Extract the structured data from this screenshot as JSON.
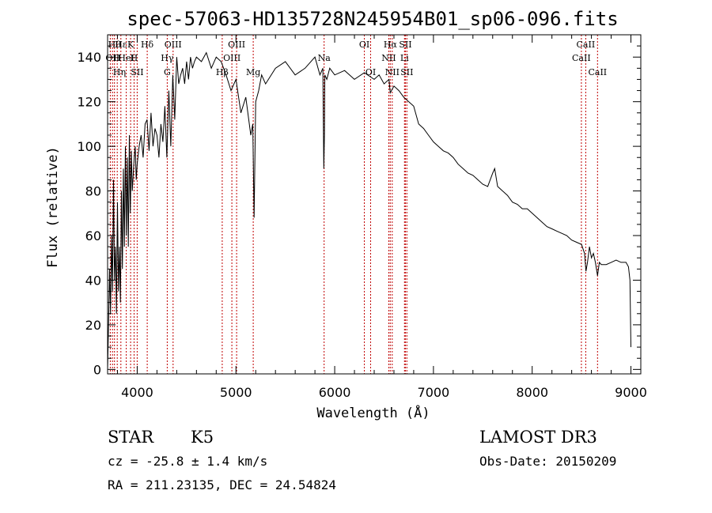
{
  "chart_data": {
    "type": "line",
    "title": "spec-57063-HD135728N245954B01_sp06-096.fits",
    "xlabel": "Wavelength (Å)",
    "ylabel": "Flux (relative)",
    "xlim": [
      3700,
      9100
    ],
    "ylim": [
      -2,
      150
    ],
    "x_ticks": [
      4000,
      5000,
      6000,
      7000,
      8000,
      9000
    ],
    "y_ticks": [
      0,
      20,
      40,
      60,
      80,
      100,
      120,
      140
    ],
    "series": [
      {
        "name": "flux",
        "x": [
          3700,
          3710,
          3720,
          3730,
          3740,
          3750,
          3760,
          3770,
          3780,
          3790,
          3800,
          3810,
          3820,
          3830,
          3840,
          3850,
          3860,
          3870,
          3880,
          3890,
          3900,
          3910,
          3920,
          3930,
          3940,
          3950,
          3960,
          3970,
          3980,
          3990,
          4000,
          4020,
          4040,
          4060,
          4080,
          4100,
          4120,
          4140,
          4160,
          4180,
          4200,
          4220,
          4240,
          4260,
          4280,
          4300,
          4320,
          4340,
          4360,
          4380,
          4400,
          4420,
          4440,
          4460,
          4480,
          4500,
          4520,
          4540,
          4560,
          4580,
          4600,
          4650,
          4700,
          4750,
          4800,
          4850,
          4900,
          4950,
          5000,
          5050,
          5100,
          5150,
          5170,
          5184,
          5200,
          5230,
          5260,
          5300,
          5400,
          5500,
          5600,
          5700,
          5800,
          5850,
          5880,
          5890,
          5896,
          5900,
          5920,
          5950,
          6000,
          6100,
          6200,
          6300,
          6400,
          6450,
          6500,
          6550,
          6563,
          6600,
          6650,
          6700,
          6750,
          6800,
          6850,
          6900,
          6950,
          7000,
          7050,
          7100,
          7150,
          7200,
          7250,
          7300,
          7350,
          7400,
          7450,
          7500,
          7550,
          7600,
          7620,
          7650,
          7700,
          7750,
          7800,
          7850,
          7900,
          7950,
          8000,
          8050,
          8100,
          8150,
          8200,
          8250,
          8300,
          8350,
          8400,
          8450,
          8500,
          8530,
          8545,
          8560,
          8580,
          8600,
          8620,
          8640,
          8662,
          8680,
          8700,
          8750,
          8800,
          8850,
          8900,
          8950,
          8975,
          8990,
          9000
        ],
        "values": [
          0,
          20,
          45,
          25,
          60,
          35,
          85,
          40,
          55,
          25,
          75,
          35,
          55,
          30,
          80,
          45,
          90,
          55,
          100,
          60,
          95,
          55,
          105,
          70,
          98,
          80,
          88,
          95,
          100,
          85,
          92,
          100,
          105,
          95,
          110,
          112,
          98,
          115,
          100,
          108,
          105,
          95,
          110,
          102,
          118,
          95,
          125,
          100,
          132,
          112,
          140,
          128,
          132,
          135,
          128,
          138,
          130,
          140,
          135,
          138,
          140,
          138,
          142,
          135,
          140,
          138,
          132,
          125,
          130,
          115,
          122,
          105,
          110,
          68,
          120,
          125,
          132,
          128,
          135,
          138,
          132,
          135,
          140,
          132,
          135,
          90,
          105,
          132,
          130,
          135,
          132,
          134,
          130,
          133,
          130,
          132,
          128,
          130,
          124,
          127,
          125,
          122,
          120,
          118,
          110,
          108,
          105,
          102,
          100,
          98,
          97,
          95,
          92,
          90,
          88,
          87,
          85,
          83,
          82,
          88,
          90,
          82,
          80,
          78,
          75,
          74,
          72,
          72,
          70,
          68,
          66,
          64,
          63,
          62,
          61,
          60,
          58,
          57,
          56,
          52,
          44,
          48,
          55,
          50,
          52,
          48,
          42,
          48,
          47,
          47,
          48,
          49,
          48,
          48,
          46,
          40,
          10
        ]
      }
    ],
    "line_labels": [
      {
        "lambda": 3750,
        "row": 1,
        "text": "OII"
      },
      {
        "lambda": 3770,
        "row": 0,
        "text": "Hθ"
      },
      {
        "lambda": 3798,
        "row": 1,
        "text": "H"
      },
      {
        "lambda": 3820,
        "row": 2,
        "text": "Hη"
      },
      {
        "lambda": 3835,
        "row": 0,
        "text": "Hε"
      },
      {
        "lambda": 3889,
        "row": 1,
        "text": "HeI"
      },
      {
        "lambda": 3933,
        "row": 0,
        "text": "K"
      },
      {
        "lambda": 3968,
        "row": 1,
        "text": "H"
      },
      {
        "lambda": 4000,
        "row": 2,
        "text": "SII"
      },
      {
        "lambda": 4101,
        "row": 0,
        "text": "Hδ"
      },
      {
        "lambda": 4304,
        "row": 1,
        "text": "Hγ"
      },
      {
        "lambda": 4304,
        "row": 2,
        "text": "G"
      },
      {
        "lambda": 4363,
        "row": 0,
        "text": "OIII"
      },
      {
        "lambda": 4861,
        "row": 2,
        "text": "Hβ"
      },
      {
        "lambda": 4959,
        "row": 1,
        "text": "OIII"
      },
      {
        "lambda": 5007,
        "row": 0,
        "text": "OIII"
      },
      {
        "lambda": 5175,
        "row": 2,
        "text": "Mg"
      },
      {
        "lambda": 5893,
        "row": 1,
        "text": "Na"
      },
      {
        "lambda": 6300,
        "row": 0,
        "text": "OI"
      },
      {
        "lambda": 6364,
        "row": 2,
        "text": "OI"
      },
      {
        "lambda": 6548,
        "row": 1,
        "text": "NII"
      },
      {
        "lambda": 6563,
        "row": 0,
        "text": "Hα"
      },
      {
        "lambda": 6583,
        "row": 2,
        "text": "NII"
      },
      {
        "lambda": 6707,
        "row": 1,
        "text": "Li"
      },
      {
        "lambda": 6716,
        "row": 0,
        "text": "SII"
      },
      {
        "lambda": 6731,
        "row": 2,
        "text": "SII"
      },
      {
        "lambda": 8498,
        "row": 1,
        "text": "CaII"
      },
      {
        "lambda": 8542,
        "row": 0,
        "text": "CaII"
      },
      {
        "lambda": 8662,
        "row": 2,
        "text": "CaII"
      }
    ],
    "line_marks": [
      3727,
      3750,
      3770,
      3798,
      3835,
      3889,
      3933,
      3968,
      4000,
      4101,
      4304,
      4363,
      4861,
      4959,
      5007,
      5175,
      5893,
      6300,
      6364,
      6548,
      6563,
      6583,
      6707,
      6716,
      6731,
      8498,
      8542,
      8662
    ]
  },
  "info": {
    "class": "STAR",
    "subclass": "K5",
    "survey": "LAMOST DR3",
    "cz": "cz = -25.8 ± 1.4 km/s",
    "obs_date": "Obs-Date: 20150209",
    "coords": "RA = 211.23135, DEC =  24.54824"
  },
  "colors": {
    "line": "#000000",
    "marker": "#c00000",
    "axis": "#000000"
  }
}
